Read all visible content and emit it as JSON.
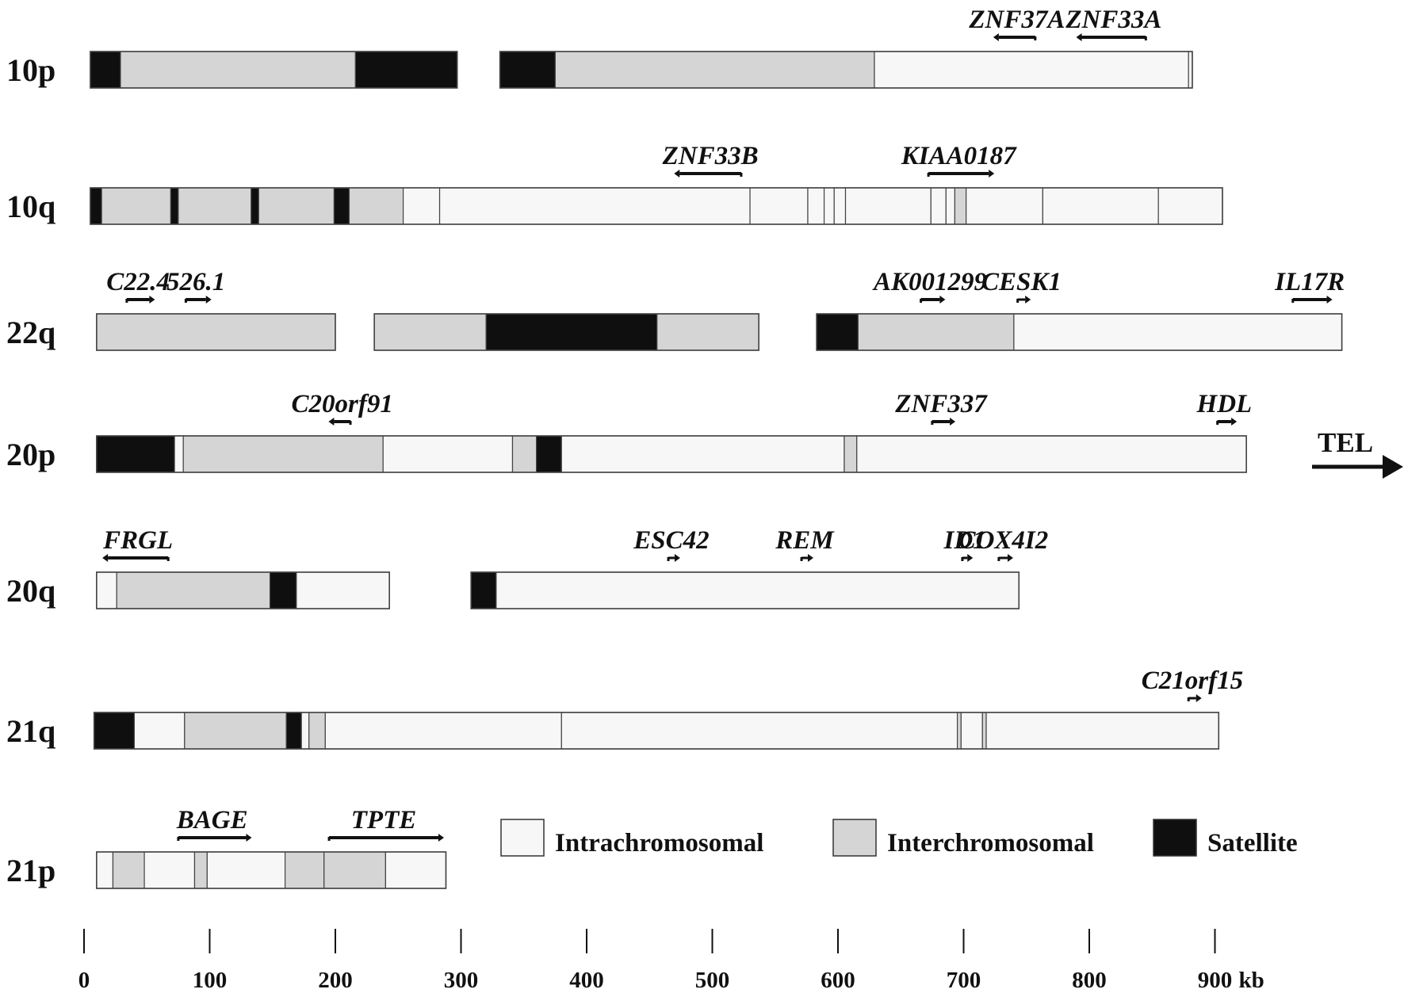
{
  "colors": {
    "intra": "#f7f7f7",
    "inter": "#d5d5d5",
    "satellite": "#0f0f0f",
    "outline": "#444444",
    "ink": "#111111"
  },
  "scale": {
    "ticks": [
      0,
      100,
      200,
      300,
      400,
      500,
      600,
      700,
      800,
      900
    ],
    "unit": "kb"
  },
  "tel_label": "TEL",
  "legend": [
    {
      "type": "intra",
      "label": "Intrachromosomal"
    },
    {
      "type": "inter",
      "label": "Interchromosomal"
    },
    {
      "type": "satellite",
      "label": "Satellite"
    }
  ],
  "tracks": [
    {
      "label": "10p",
      "fragments": [
        {
          "start": 5,
          "end": 297,
          "segments": [
            {
              "start": 5,
              "end": 29,
              "type": "satellite"
            },
            {
              "start": 29,
              "end": 216,
              "type": "inter"
            },
            {
              "start": 216,
              "end": 297,
              "type": "satellite"
            }
          ]
        },
        {
          "start": 331,
          "end": 882,
          "segments": [
            {
              "start": 331,
              "end": 375,
              "type": "satellite"
            },
            {
              "start": 375,
              "end": 629,
              "type": "inter"
            },
            {
              "start": 629,
              "end": 879,
              "type": "intra"
            },
            {
              "start": 879,
              "end": 882,
              "type": "intra"
            }
          ]
        }
      ],
      "genes": [
        {
          "name": "ZNF37A",
          "start": 757,
          "end": 728
        },
        {
          "name": "ZNF33A",
          "start": 845,
          "end": 794
        }
      ]
    },
    {
      "label": "10q",
      "fragments": [
        {
          "start": 5,
          "end": 906,
          "segments": [
            {
              "start": 5,
              "end": 14,
              "type": "satellite"
            },
            {
              "start": 14,
              "end": 69,
              "type": "inter"
            },
            {
              "start": 69,
              "end": 75,
              "type": "satellite"
            },
            {
              "start": 75,
              "end": 133,
              "type": "inter"
            },
            {
              "start": 133,
              "end": 139,
              "type": "satellite"
            },
            {
              "start": 139,
              "end": 199,
              "type": "inter"
            },
            {
              "start": 199,
              "end": 211,
              "type": "satellite"
            },
            {
              "start": 211,
              "end": 254,
              "type": "inter"
            },
            {
              "start": 254,
              "end": 283,
              "type": "intra"
            },
            {
              "start": 283,
              "end": 530,
              "type": "intra"
            },
            {
              "start": 530,
              "end": 576,
              "type": "intra"
            },
            {
              "start": 576,
              "end": 589,
              "type": "intra"
            },
            {
              "start": 589,
              "end": 597,
              "type": "intra"
            },
            {
              "start": 597,
              "end": 606,
              "type": "intra"
            },
            {
              "start": 606,
              "end": 674,
              "type": "intra"
            },
            {
              "start": 674,
              "end": 686,
              "type": "intra"
            },
            {
              "start": 686,
              "end": 693,
              "type": "intra"
            },
            {
              "start": 693,
              "end": 702,
              "type": "inter"
            },
            {
              "start": 702,
              "end": 763,
              "type": "intra"
            },
            {
              "start": 763,
              "end": 855,
              "type": "intra"
            },
            {
              "start": 855,
              "end": 906,
              "type": "intra"
            }
          ]
        }
      ],
      "genes": [
        {
          "name": "ZNF33B",
          "start": 523,
          "end": 474
        },
        {
          "name": "KIAA0187",
          "start": 672,
          "end": 720
        }
      ]
    },
    {
      "label": "22q",
      "fragments": [
        {
          "start": 10,
          "end": 200,
          "segments": [
            {
              "start": 10,
              "end": 200,
              "type": "inter"
            }
          ]
        },
        {
          "start": 231,
          "end": 537,
          "segments": [
            {
              "start": 231,
              "end": 320,
              "type": "inter"
            },
            {
              "start": 320,
              "end": 456,
              "type": "satellite"
            },
            {
              "start": 456,
              "end": 537,
              "type": "inter"
            }
          ]
        },
        {
          "start": 583,
          "end": 1001,
          "segments": [
            {
              "start": 583,
              "end": 616,
              "type": "satellite"
            },
            {
              "start": 616,
              "end": 740,
              "type": "inter"
            },
            {
              "start": 740,
              "end": 1001,
              "type": "intra"
            }
          ]
        }
      ],
      "genes": [
        {
          "name": "C22.4",
          "start": 34,
          "end": 52
        },
        {
          "name": "526.1",
          "start": 81,
          "end": 97
        },
        {
          "name": "AK001299",
          "start": 666,
          "end": 681
        },
        {
          "name": "CESK1",
          "start": 743,
          "end": 749
        },
        {
          "name": "IL17R",
          "start": 962,
          "end": 989
        }
      ]
    },
    {
      "label": "20p",
      "fragments": [
        {
          "start": 10,
          "end": 925,
          "segments": [
            {
              "start": 10,
              "end": 72,
              "type": "satellite"
            },
            {
              "start": 72,
              "end": 79,
              "type": "intra"
            },
            {
              "start": 79,
              "end": 238,
              "type": "inter"
            },
            {
              "start": 238,
              "end": 341,
              "type": "intra"
            },
            {
              "start": 341,
              "end": 360,
              "type": "inter"
            },
            {
              "start": 360,
              "end": 380,
              "type": "satellite"
            },
            {
              "start": 380,
              "end": 605,
              "type": "intra"
            },
            {
              "start": 605,
              "end": 615,
              "type": "inter"
            },
            {
              "start": 615,
              "end": 925,
              "type": "intra"
            }
          ]
        }
      ],
      "genes": [
        {
          "name": "C20orf91",
          "start": 212,
          "end": 199
        },
        {
          "name": "ZNF337",
          "start": 675,
          "end": 689
        },
        {
          "name": "HDL",
          "start": 902,
          "end": 913
        }
      ]
    },
    {
      "label": "20q",
      "fragments": [
        {
          "start": 10,
          "end": 243,
          "segments": [
            {
              "start": 10,
              "end": 26,
              "type": "intra"
            },
            {
              "start": 26,
              "end": 148,
              "type": "inter"
            },
            {
              "start": 148,
              "end": 169,
              "type": "satellite"
            },
            {
              "start": 169,
              "end": 243,
              "type": "intra"
            }
          ]
        },
        {
          "start": 308,
          "end": 744,
          "segments": [
            {
              "start": 308,
              "end": 328,
              "type": "satellite"
            },
            {
              "start": 328,
              "end": 744,
              "type": "intra"
            }
          ]
        }
      ],
      "genes": [
        {
          "name": "FRGL",
          "start": 67,
          "end": 19
        },
        {
          "name": "ESC42",
          "start": 465,
          "end": 470
        },
        {
          "name": "REM",
          "start": 571,
          "end": 576
        },
        {
          "name": "ID1",
          "start": 699,
          "end": 703
        },
        {
          "name": "COX4I2",
          "start": 728,
          "end": 735
        }
      ]
    },
    {
      "label": "21q",
      "fragments": [
        {
          "start": 8,
          "end": 903,
          "segments": [
            {
              "start": 8,
              "end": 40,
              "type": "satellite"
            },
            {
              "start": 40,
              "end": 80,
              "type": "intra"
            },
            {
              "start": 80,
              "end": 161,
              "type": "inter"
            },
            {
              "start": 161,
              "end": 173,
              "type": "satellite"
            },
            {
              "start": 173,
              "end": 179,
              "type": "intra"
            },
            {
              "start": 179,
              "end": 192,
              "type": "inter"
            },
            {
              "start": 192,
              "end": 380,
              "type": "intra"
            },
            {
              "start": 380,
              "end": 695,
              "type": "intra"
            },
            {
              "start": 695,
              "end": 698,
              "type": "inter"
            },
            {
              "start": 698,
              "end": 715,
              "type": "intra"
            },
            {
              "start": 715,
              "end": 718,
              "type": "inter"
            },
            {
              "start": 718,
              "end": 903,
              "type": "intra"
            }
          ]
        }
      ],
      "genes": [
        {
          "name": "C21orf15",
          "start": 879,
          "end": 885
        }
      ]
    },
    {
      "label": "21p",
      "fragments": [
        {
          "start": 10,
          "end": 288,
          "segments": [
            {
              "start": 10,
              "end": 23,
              "type": "intra"
            },
            {
              "start": 23,
              "end": 48,
              "type": "inter"
            },
            {
              "start": 48,
              "end": 88,
              "type": "intra"
            },
            {
              "start": 88,
              "end": 98,
              "type": "inter"
            },
            {
              "start": 98,
              "end": 160,
              "type": "intra"
            },
            {
              "start": 160,
              "end": 191,
              "type": "inter"
            },
            {
              "start": 191,
              "end": 240,
              "type": "inter"
            },
            {
              "start": 240,
              "end": 288,
              "type": "intra"
            }
          ]
        }
      ],
      "genes": [
        {
          "name": "BAGE",
          "start": 75,
          "end": 129
        },
        {
          "name": "TPTE",
          "start": 195,
          "end": 282
        }
      ]
    }
  ]
}
